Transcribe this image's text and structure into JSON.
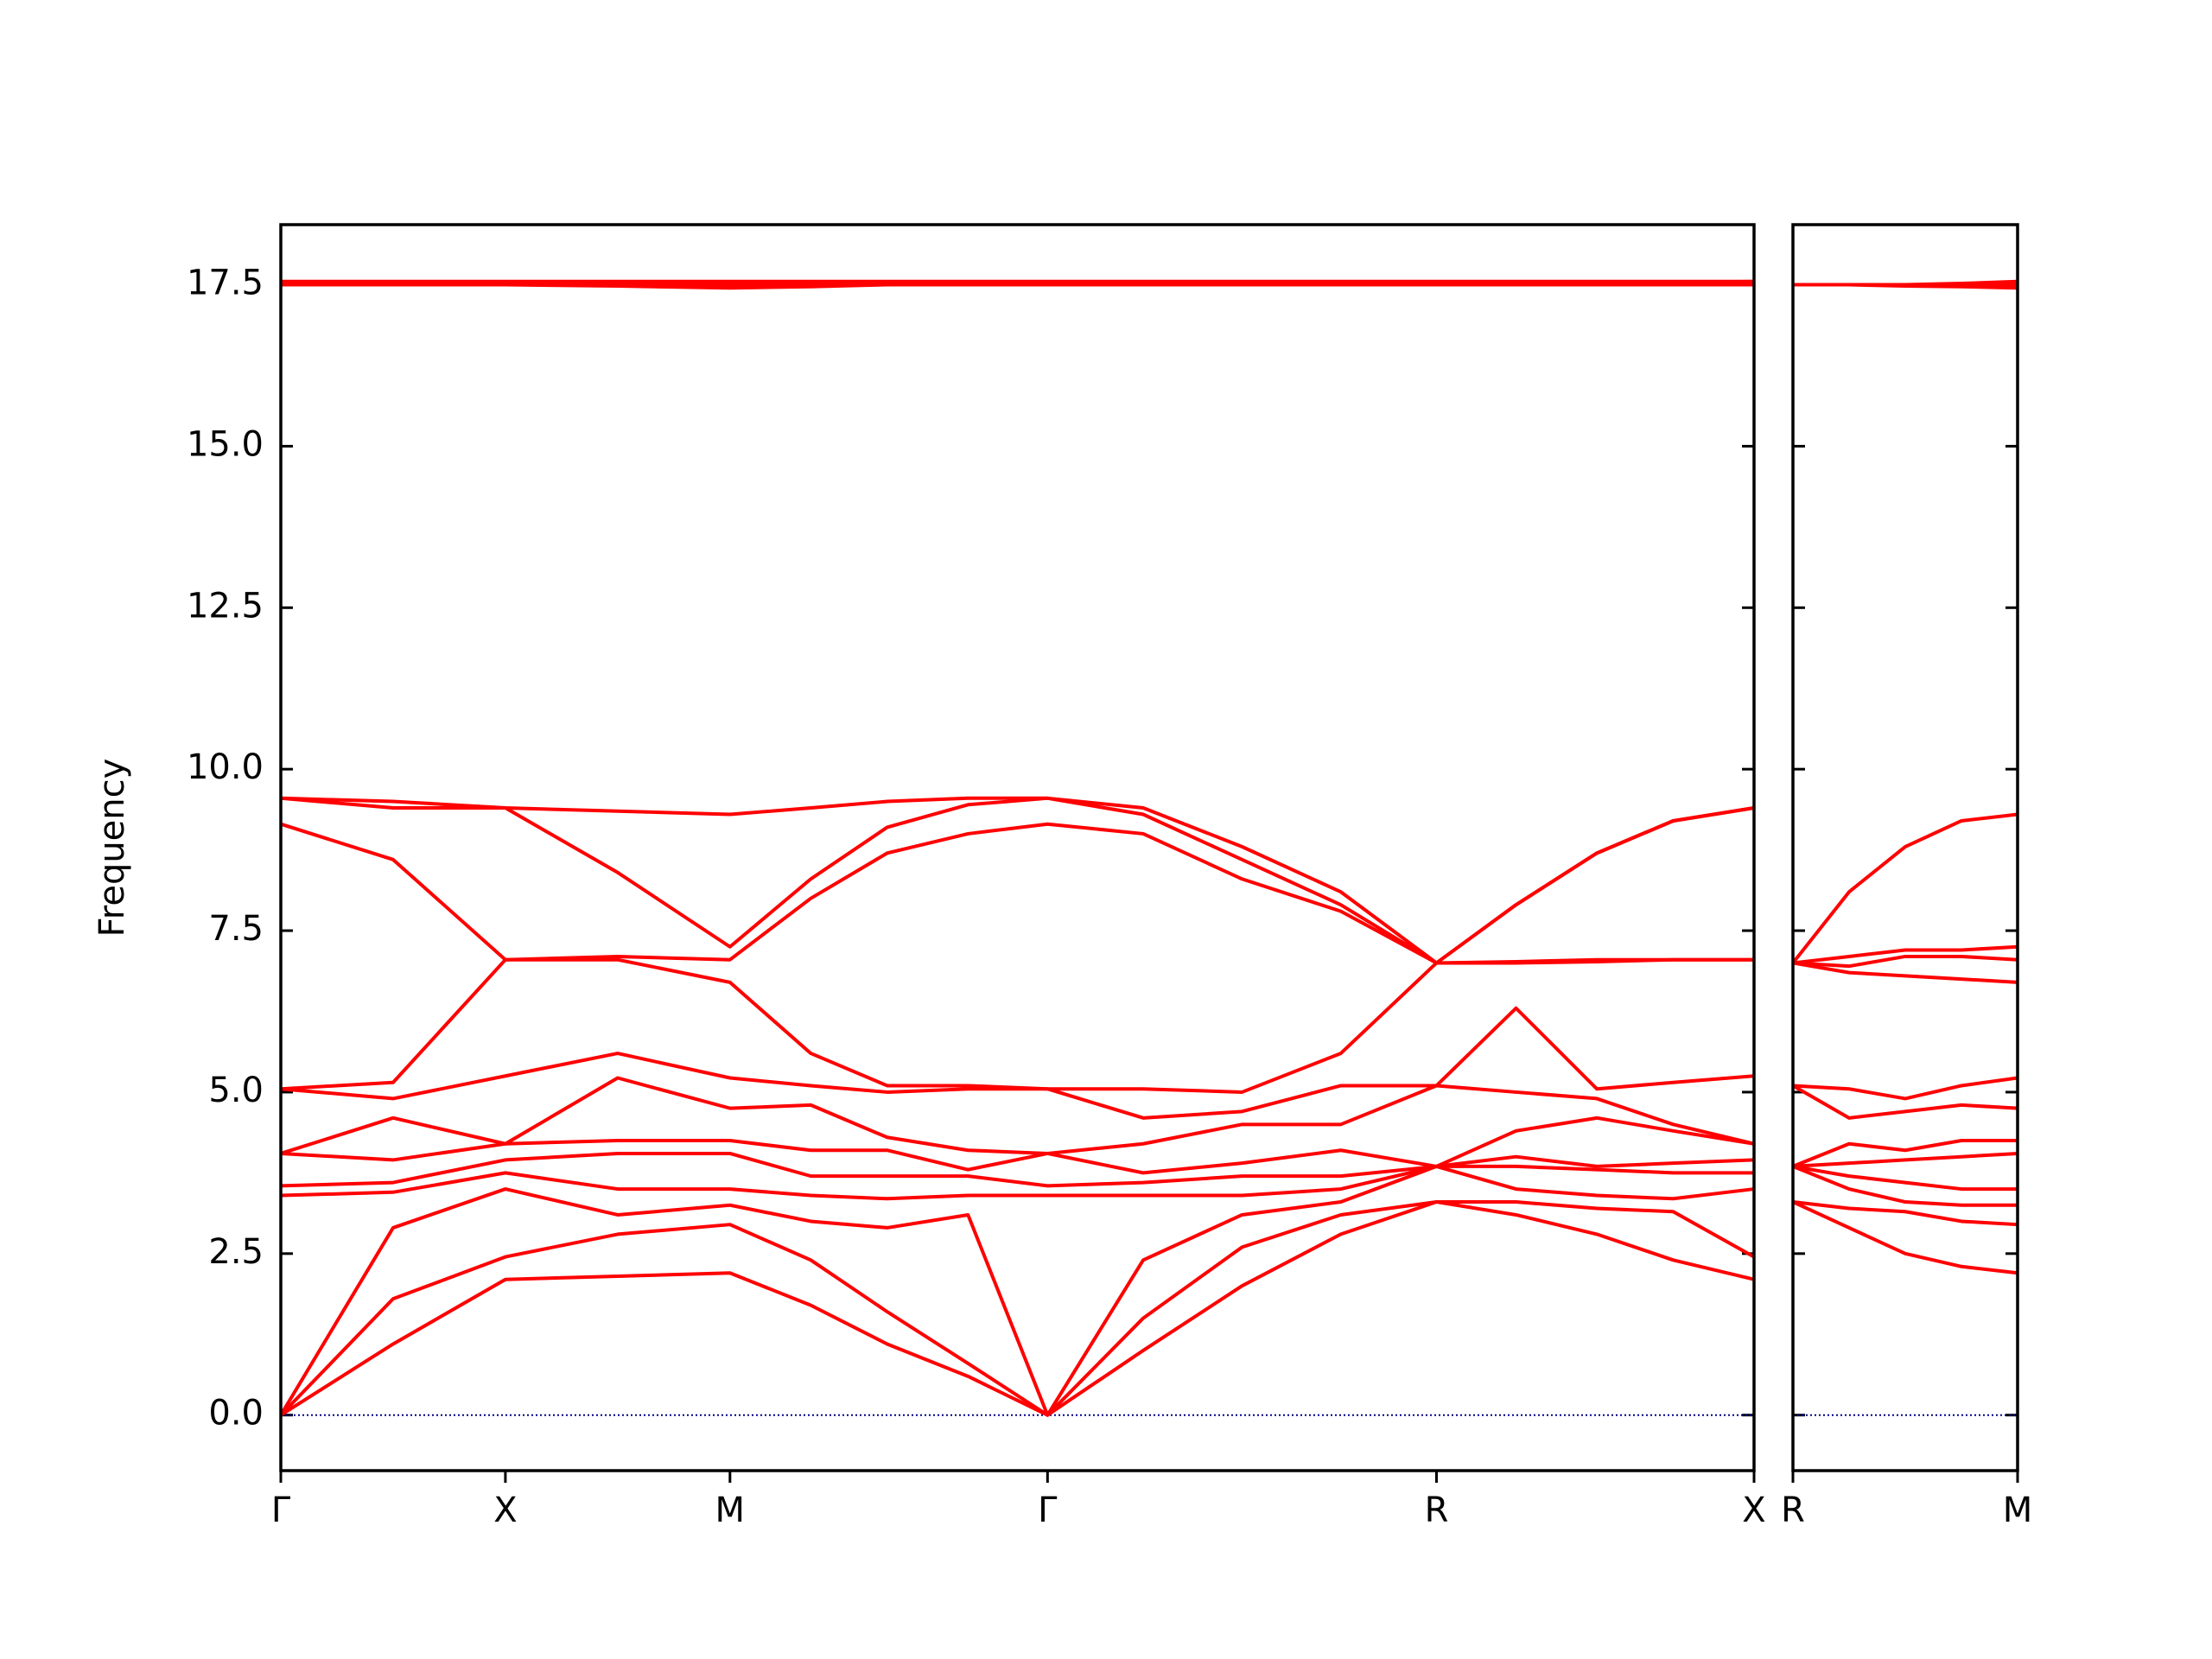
{
  "chart_data": [
    {
      "type": "line",
      "ylabel": "Frequency",
      "color": "#ff0000",
      "x": [
        0,
        0.25,
        0.5,
        0.75,
        1.0,
        1.18,
        1.35,
        1.53,
        1.707,
        1.92,
        2.14,
        2.36,
        2.573,
        2.75,
        2.93,
        3.1,
        3.28
      ],
      "bands": [
        [
          0,
          1.1,
          2.1,
          2.15,
          2.2,
          1.7,
          1.1,
          0.6,
          0,
          1.0,
          2.0,
          2.8,
          3.3,
          3.1,
          2.8,
          2.4,
          2.1
        ],
        [
          0,
          1.8,
          2.45,
          2.8,
          2.95,
          2.4,
          1.6,
          0.8,
          0,
          1.5,
          2.6,
          3.1,
          3.3,
          3.3,
          3.2,
          3.15,
          2.45
        ],
        [
          0,
          2.9,
          3.5,
          3.1,
          3.25,
          3.0,
          2.9,
          3.1,
          0,
          2.4,
          3.1,
          3.3,
          3.85,
          3.5,
          3.4,
          3.35,
          3.5
        ],
        [
          3.4,
          3.45,
          3.75,
          3.5,
          3.5,
          3.4,
          3.35,
          3.4,
          3.4,
          3.4,
          3.4,
          3.5,
          3.85,
          3.85,
          3.8,
          3.75,
          3.75
        ],
        [
          3.55,
          3.6,
          3.95,
          4.05,
          4.05,
          3.7,
          3.7,
          3.7,
          3.55,
          3.6,
          3.7,
          3.7,
          3.85,
          4.0,
          3.85,
          3.9,
          3.95
        ],
        [
          4.05,
          3.95,
          4.2,
          4.25,
          4.25,
          4.1,
          4.1,
          3.8,
          4.05,
          3.75,
          3.9,
          4.1,
          3.85,
          4.4,
          4.6,
          4.4,
          4.2
        ],
        [
          4.05,
          4.6,
          4.2,
          5.22,
          4.75,
          4.8,
          4.3,
          4.1,
          4.05,
          4.2,
          4.5,
          4.5,
          5.1,
          5.0,
          4.9,
          4.5,
          4.2
        ],
        [
          5.05,
          4.9,
          5.25,
          5.6,
          5.22,
          5.1,
          5.0,
          5.05,
          5.05,
          4.6,
          4.7,
          5.1,
          5.1,
          6.3,
          5.05,
          5.15,
          5.25
        ],
        [
          5.05,
          5.15,
          7.05,
          7.05,
          6.7,
          5.6,
          5.1,
          5.1,
          5.05,
          5.05,
          5.0,
          5.6,
          7.0,
          7.0,
          7.02,
          7.05,
          7.05
        ],
        [
          9.15,
          8.6,
          7.05,
          7.1,
          7.05,
          8.0,
          8.7,
          9.0,
          9.15,
          9.0,
          8.3,
          7.8,
          7.0,
          7.02,
          7.05,
          7.05,
          7.05
        ],
        [
          9.55,
          9.4,
          9.4,
          8.4,
          7.25,
          8.3,
          9.1,
          9.45,
          9.55,
          9.3,
          8.6,
          7.9,
          7.0,
          7.9,
          8.7,
          9.2,
          9.4
        ],
        [
          9.55,
          9.5,
          9.4,
          9.35,
          9.3,
          9.4,
          9.5,
          9.55,
          9.55,
          9.4,
          8.8,
          8.1,
          7.0,
          7.9,
          8.7,
          9.2,
          9.4
        ],
        [
          17.55,
          17.55,
          17.55,
          17.55,
          17.55,
          17.55,
          17.55,
          17.55,
          17.55,
          17.55,
          17.55,
          17.55,
          17.55,
          17.55,
          17.55,
          17.55,
          17.55
        ],
        [
          17.5,
          17.5,
          17.5,
          17.5,
          17.5,
          17.5,
          17.5,
          17.5,
          17.5,
          17.5,
          17.5,
          17.5,
          17.5,
          17.5,
          17.5,
          17.5,
          17.5
        ],
        [
          17.5,
          17.5,
          17.5,
          17.48,
          17.45,
          17.47,
          17.5,
          17.5,
          17.5,
          17.5,
          17.5,
          17.5,
          17.5,
          17.5,
          17.52,
          17.53,
          17.55
        ]
      ],
      "xlim": [
        0,
        3.28
      ],
      "xticks": [
        {
          "value": 0,
          "label": "Γ"
        },
        {
          "value": 0.5,
          "label": "X"
        },
        {
          "value": 1.0,
          "label": "M"
        },
        {
          "value": 1.707,
          "label": "Γ"
        },
        {
          "value": 2.573,
          "label": "R"
        },
        {
          "value": 3.28,
          "label": "X"
        }
      ],
      "ylim": [
        -0.86,
        18.43
      ],
      "yticks": [
        {
          "value": 0,
          "label": "0.0"
        },
        2.5,
        {
          "value": 5,
          "label": "5.0"
        },
        7.5,
        {
          "value": 10,
          "label": "10.0"
        },
        12.5,
        {
          "value": 15,
          "label": "15.0"
        },
        17.5
      ],
      "hline": 0,
      "hline_color": "#00008b"
    },
    {
      "type": "line",
      "color": "#ff0000",
      "x": [
        0,
        0.125,
        0.25,
        0.375,
        0.5
      ],
      "bands": [
        [
          3.3,
          2.9,
          2.5,
          2.3,
          2.2
        ],
        [
          3.3,
          3.2,
          3.15,
          3.0,
          2.95
        ],
        [
          3.85,
          3.5,
          3.3,
          3.25,
          3.25
        ],
        [
          3.85,
          3.7,
          3.6,
          3.5,
          3.5
        ],
        [
          3.85,
          3.9,
          3.95,
          4.0,
          4.05
        ],
        [
          3.85,
          4.2,
          4.1,
          4.25,
          4.25
        ],
        [
          5.1,
          4.6,
          4.7,
          4.8,
          4.75
        ],
        [
          5.1,
          5.05,
          4.9,
          5.1,
          5.22
        ],
        [
          7.0,
          6.85,
          6.8,
          6.75,
          6.7
        ],
        [
          7.0,
          6.95,
          7.1,
          7.1,
          7.05
        ],
        [
          7.0,
          7.1,
          7.2,
          7.2,
          7.25
        ],
        [
          7.0,
          8.1,
          8.8,
          9.2,
          9.3
        ],
        [
          17.5,
          17.5,
          17.5,
          17.52,
          17.55
        ],
        [
          17.5,
          17.5,
          17.5,
          17.5,
          17.5
        ],
        [
          17.5,
          17.5,
          17.48,
          17.47,
          17.45
        ]
      ],
      "xlim": [
        0,
        0.5
      ],
      "xticks": [
        {
          "value": 0,
          "label": "R"
        },
        {
          "value": 0.5,
          "label": "M"
        }
      ],
      "ylim": [
        -0.86,
        18.43
      ],
      "hline": 0,
      "hline_color": "#00008b"
    }
  ]
}
